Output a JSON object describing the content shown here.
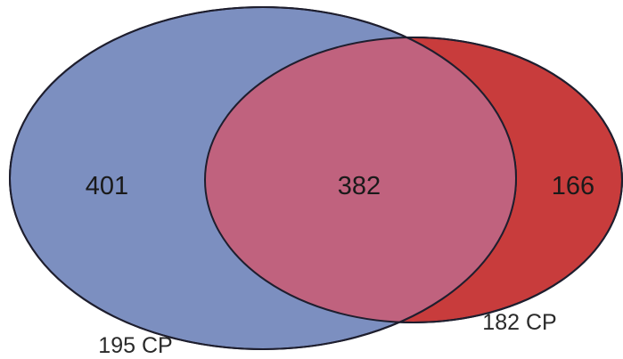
{
  "venn": {
    "sets": [
      {
        "label": "195 CP",
        "color": "#7c8fc0"
      },
      {
        "label": "182 CP",
        "color": "#c83c3c"
      }
    ],
    "regions": {
      "left_only": "401",
      "intersection": "382",
      "right_only": "166"
    },
    "intersection_color": "#c0627e",
    "outline_color": "#1e1e2e"
  }
}
